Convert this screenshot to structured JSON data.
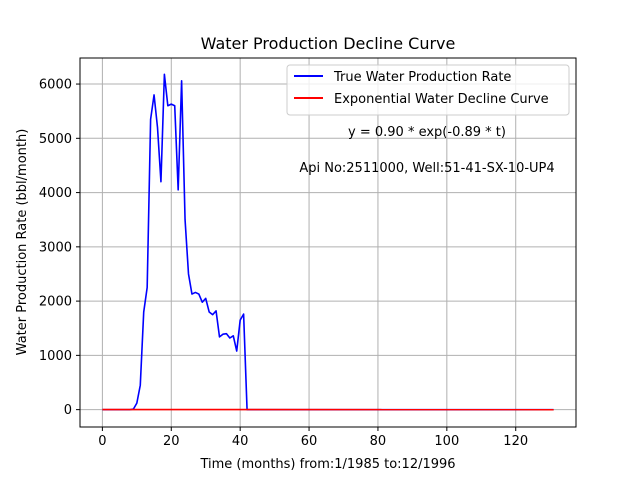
{
  "chart_data": {
    "type": "line",
    "title": "Water Production Decline Curve",
    "xlabel": "Time (months) from:1/1985 to:12/1996",
    "ylabel": "Water Production Rate (bbl/month)",
    "xlim": [
      -6.5,
      137.5
    ],
    "ylim": [
      -320,
      6480
    ],
    "xticks": [
      0,
      20,
      40,
      60,
      80,
      100,
      120
    ],
    "yticks": [
      0,
      1000,
      2000,
      3000,
      4000,
      5000,
      6000
    ],
    "grid": true,
    "legend": "top-right",
    "annotations": [
      "y = 0.90 * exp(-0.89 * t)",
      "Api No:2511000, Well:51-41-SX-10-UP4"
    ],
    "series": [
      {
        "name": "True Water Production Rate",
        "color": "#0000ff",
        "x": [
          0,
          1,
          2,
          3,
          4,
          5,
          6,
          7,
          8,
          9,
          10,
          11,
          12,
          13,
          14,
          15,
          16,
          17,
          18,
          19,
          20,
          21,
          22,
          23,
          24,
          25,
          26,
          27,
          28,
          29,
          30,
          31,
          32,
          33,
          34,
          35,
          36,
          37,
          38,
          39,
          40,
          41,
          42,
          43,
          44,
          45,
          46,
          47,
          48,
          49,
          50,
          51,
          52,
          53,
          54,
          55,
          56,
          57,
          58,
          59,
          60,
          61,
          62,
          63,
          64,
          65,
          66,
          67,
          68,
          69,
          70,
          71,
          72,
          73,
          74,
          75,
          76,
          77,
          78,
          79,
          80,
          81,
          82,
          83,
          84,
          85,
          86,
          87,
          88,
          89,
          90,
          91,
          92,
          93,
          94,
          95,
          96,
          97,
          98,
          99,
          100,
          101,
          102,
          103,
          104,
          105,
          106,
          107,
          108,
          109,
          110,
          111,
          112,
          113,
          114,
          115,
          116,
          117,
          118,
          119,
          120,
          121,
          122,
          123,
          124,
          125,
          126,
          127,
          128,
          129,
          130,
          131
        ],
        "y": [
          0,
          0,
          0,
          0,
          0,
          0,
          0,
          0,
          0,
          10,
          120,
          450,
          1800,
          2250,
          5350,
          5800,
          5200,
          4200,
          6180,
          5600,
          5630,
          5600,
          4050,
          6060,
          3500,
          2500,
          2130,
          2160,
          2130,
          1980,
          2050,
          1800,
          1750,
          1820,
          1340,
          1390,
          1400,
          1320,
          1360,
          1080,
          1650,
          1760,
          0,
          0,
          0,
          0,
          0,
          0,
          0,
          0,
          0,
          0,
          0,
          0,
          0,
          0,
          0,
          0,
          0,
          0,
          0,
          0,
          0,
          0,
          0,
          0,
          0,
          0,
          0,
          0,
          0,
          0,
          0,
          0,
          0,
          0,
          0,
          0,
          0,
          0,
          0,
          0,
          0,
          0,
          0,
          0,
          0,
          0,
          0,
          0,
          0,
          0,
          0,
          0,
          0,
          0,
          0,
          0,
          0,
          0,
          0,
          0,
          0,
          0,
          0,
          0,
          0,
          0,
          0,
          0,
          0,
          0,
          0,
          0,
          0,
          0,
          0,
          0,
          0,
          0,
          0,
          0,
          0,
          0,
          0,
          0,
          0,
          0,
          0,
          0,
          0,
          0
        ]
      },
      {
        "name": "Exponential Water Decline Curve",
        "color": "#ff0000",
        "x": [
          0,
          131
        ],
        "y": [
          0.9,
          0.0
        ]
      }
    ]
  }
}
